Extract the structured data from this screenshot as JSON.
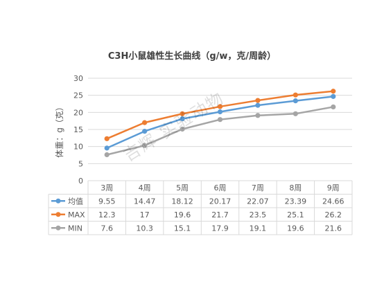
{
  "chart_data": {
    "type": "line",
    "title": "C3H小鼠雄性生长曲线（g/w，克/周龄）",
    "ylabel": "体重：g（克）",
    "xlabel": "",
    "categories": [
      "3周",
      "4周",
      "5周",
      "6周",
      "7周",
      "8周",
      "9周"
    ],
    "ylim": [
      0,
      30
    ],
    "yticks": [
      0,
      5,
      10,
      15,
      20,
      25,
      30
    ],
    "grid": true,
    "legend": "data-table",
    "series": [
      {
        "name": "均值",
        "color": "#5b9bd5",
        "values": [
          9.55,
          14.47,
          18.12,
          20.17,
          22.07,
          23.39,
          24.66
        ]
      },
      {
        "name": "MAX",
        "color": "#ed7d31",
        "values": [
          12.3,
          17,
          19.6,
          21.7,
          23.5,
          25.1,
          26.2
        ]
      },
      {
        "name": "MIN",
        "color": "#a5a5a5",
        "values": [
          7.6,
          10.3,
          15.1,
          17.9,
          19.1,
          19.6,
          21.6
        ]
      }
    ]
  },
  "watermark": "吉辉 实验动物"
}
